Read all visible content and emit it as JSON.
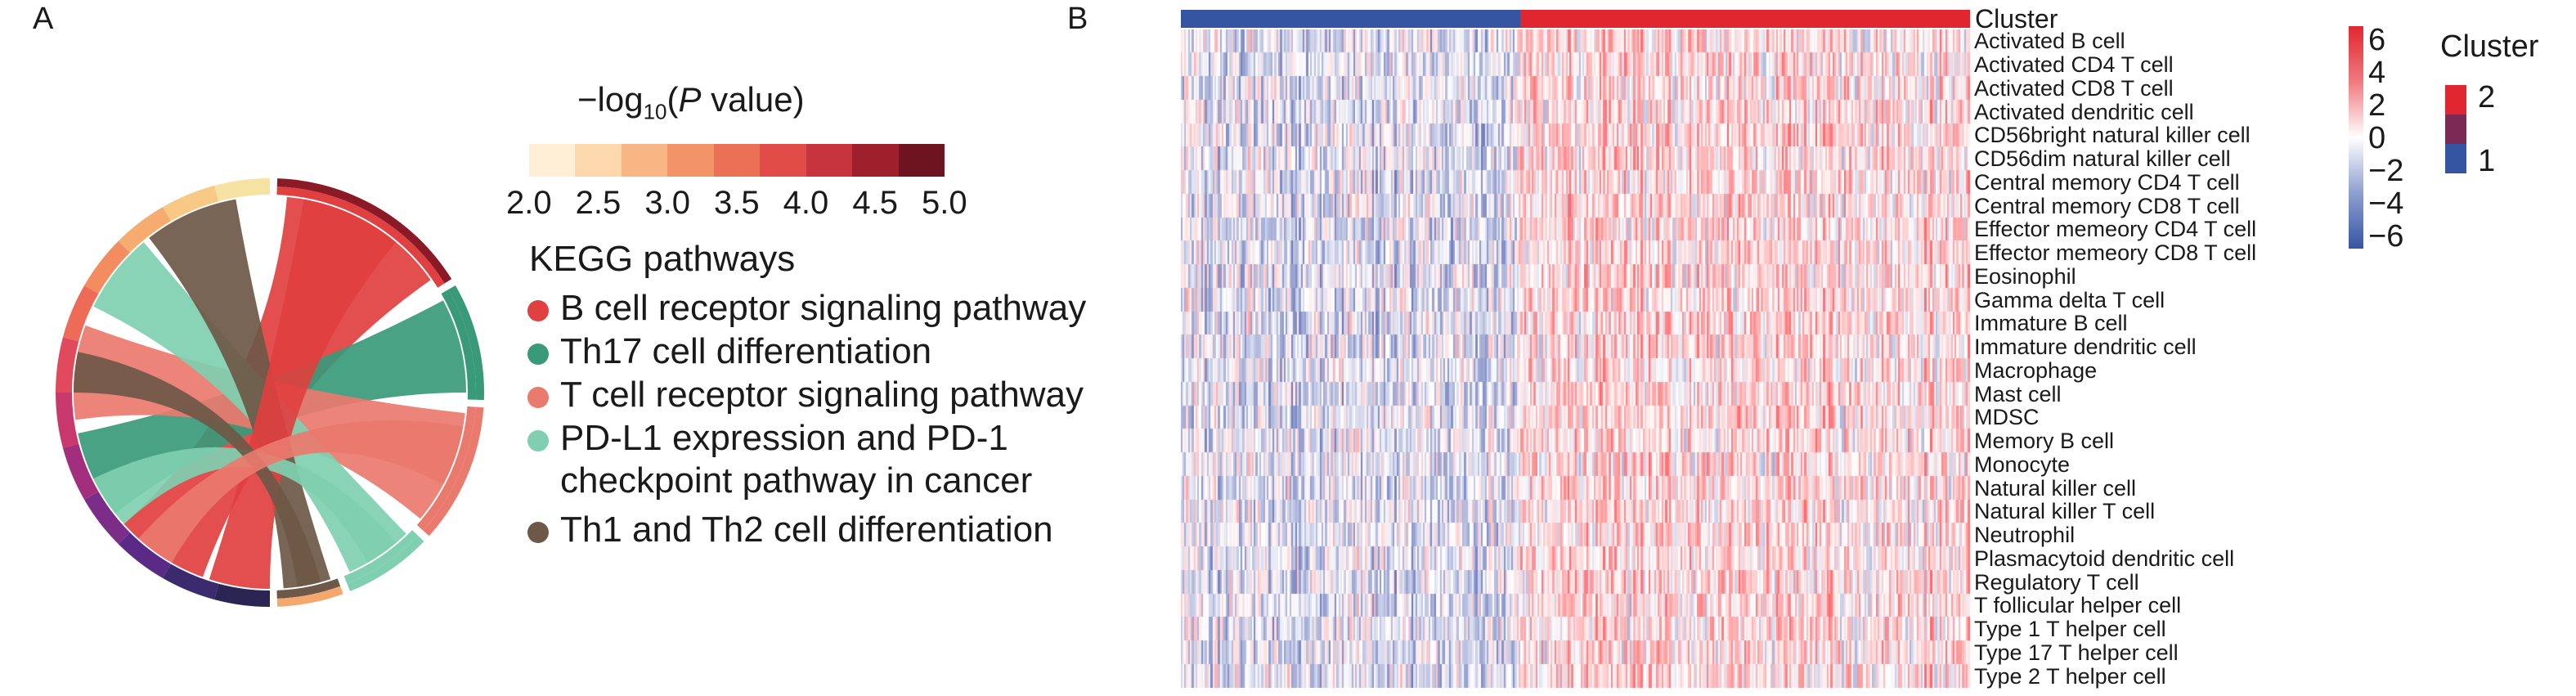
{
  "panel_a": {
    "letter": "A",
    "pvalue_legend": {
      "title_prefix": "−log",
      "title_sub": "10",
      "title_paren_open": "(",
      "title_p": "P",
      "title_rest": " value)",
      "ticks": [
        "2.0",
        "2.5",
        "3.0",
        "3.5",
        "4.0",
        "4.5",
        "5.0"
      ],
      "colors": [
        "#fdeed5",
        "#fcd8ac",
        "#f8b584",
        "#f29368",
        "#ec7055",
        "#e14c48",
        "#c7343d",
        "#9e202d",
        "#6e1420"
      ]
    },
    "kegg": {
      "title": "KEGG pathways",
      "items": [
        {
          "label": "B cell receptor signaling pathway",
          "color": "#e0403f"
        },
        {
          "label": "Th17 cell differentiation",
          "color": "#389a78"
        },
        {
          "label": "T cell receptor signaling pathway",
          "color": "#ea7a6e"
        },
        {
          "label": "PD-L1 expression and PD-1",
          "label2": "checkpoint pathway in cancer",
          "color": "#7fcfb0"
        },
        {
          "label": "Th1 and Th2 cell differentiation",
          "color": "#6e5847"
        }
      ]
    }
  },
  "panel_b": {
    "letter": "B",
    "cluster_bar_label": "Cluster",
    "cluster_split_fraction": 0.43,
    "cluster_colors": {
      "1": "#3555a3",
      "2": "#e0262f"
    },
    "row_labels": [
      "Activated B cell",
      "Activated CD4 T cell",
      "Activated CD8 T cell",
      "Activated dendritic cell",
      "CD56bright natural killer cell",
      "CD56dim natural killer cell",
      "Central memory CD4 T cell",
      "Central memory CD8 T cell",
      "Effector memeory CD4 T cell",
      "Effector memeory CD8 T cell",
      "Eosinophil",
      "Gamma delta T cell",
      "Immature B cell",
      "Immature dendritic cell",
      "Macrophage",
      "Mast cell",
      "MDSC",
      "Memory B cell",
      "Monocyte",
      "Natural killer cell",
      "Natural killer T cell",
      "Neutrophil",
      "Plasmacytoid dendritic cell",
      "Regulatory T cell",
      "T follicular helper cell",
      "Type 1 T helper cell",
      "Type 17 T helper cell",
      "Type 2 T helper cell"
    ],
    "scale": {
      "ticks": [
        "6",
        "4",
        "2",
        "0",
        "−2",
        "−4",
        "−6"
      ],
      "range": [
        -6,
        6
      ]
    },
    "cluster_legend": {
      "title": "Cluster",
      "entries": [
        {
          "label": "2",
          "color": "#e0262f"
        },
        {
          "label": "1",
          "color": "#3555a3"
        }
      ]
    }
  }
}
